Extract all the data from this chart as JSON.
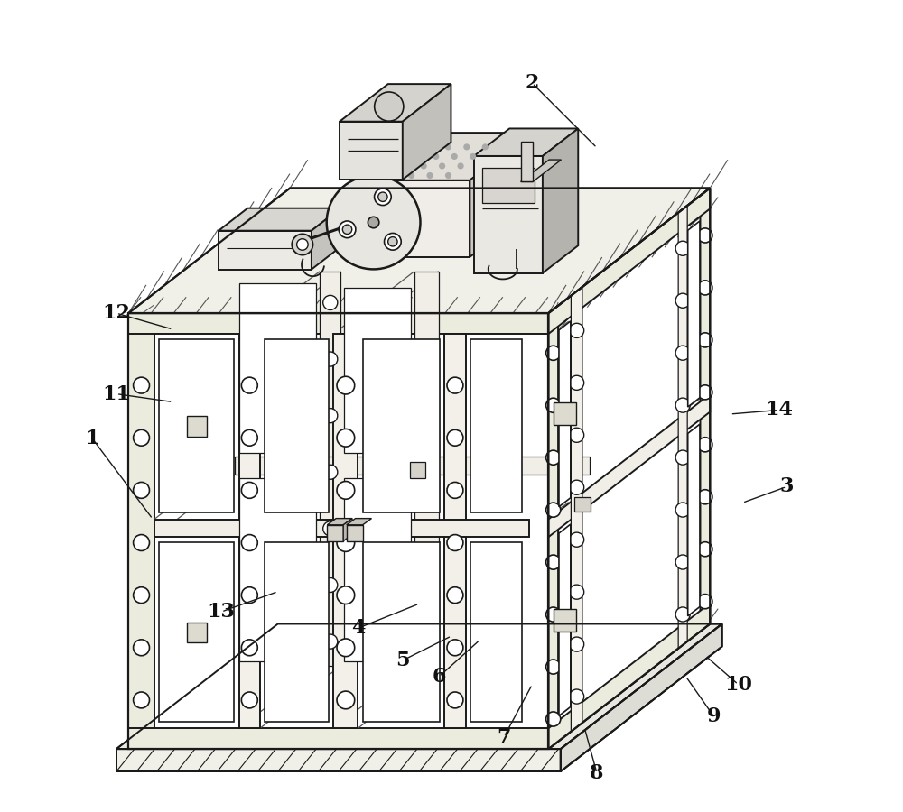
{
  "bg_color": "#ffffff",
  "line_color": "#1a1a1a",
  "figsize": [
    10.0,
    9.0
  ],
  "dpi": 100,
  "labels": [
    [
      1,
      0.055,
      0.46,
      0.13,
      0.36
    ],
    [
      2,
      0.6,
      0.9,
      0.68,
      0.82
    ],
    [
      3,
      0.915,
      0.4,
      0.86,
      0.38
    ],
    [
      4,
      0.385,
      0.225,
      0.46,
      0.255
    ],
    [
      5,
      0.44,
      0.185,
      0.5,
      0.215
    ],
    [
      6,
      0.485,
      0.165,
      0.535,
      0.21
    ],
    [
      7,
      0.565,
      0.09,
      0.6,
      0.155
    ],
    [
      8,
      0.68,
      0.045,
      0.665,
      0.1
    ],
    [
      9,
      0.825,
      0.115,
      0.79,
      0.165
    ],
    [
      10,
      0.855,
      0.155,
      0.815,
      0.19
    ],
    [
      11,
      0.085,
      0.515,
      0.155,
      0.505
    ],
    [
      12,
      0.085,
      0.615,
      0.155,
      0.595
    ],
    [
      13,
      0.215,
      0.245,
      0.285,
      0.27
    ],
    [
      14,
      0.905,
      0.495,
      0.845,
      0.49
    ]
  ]
}
